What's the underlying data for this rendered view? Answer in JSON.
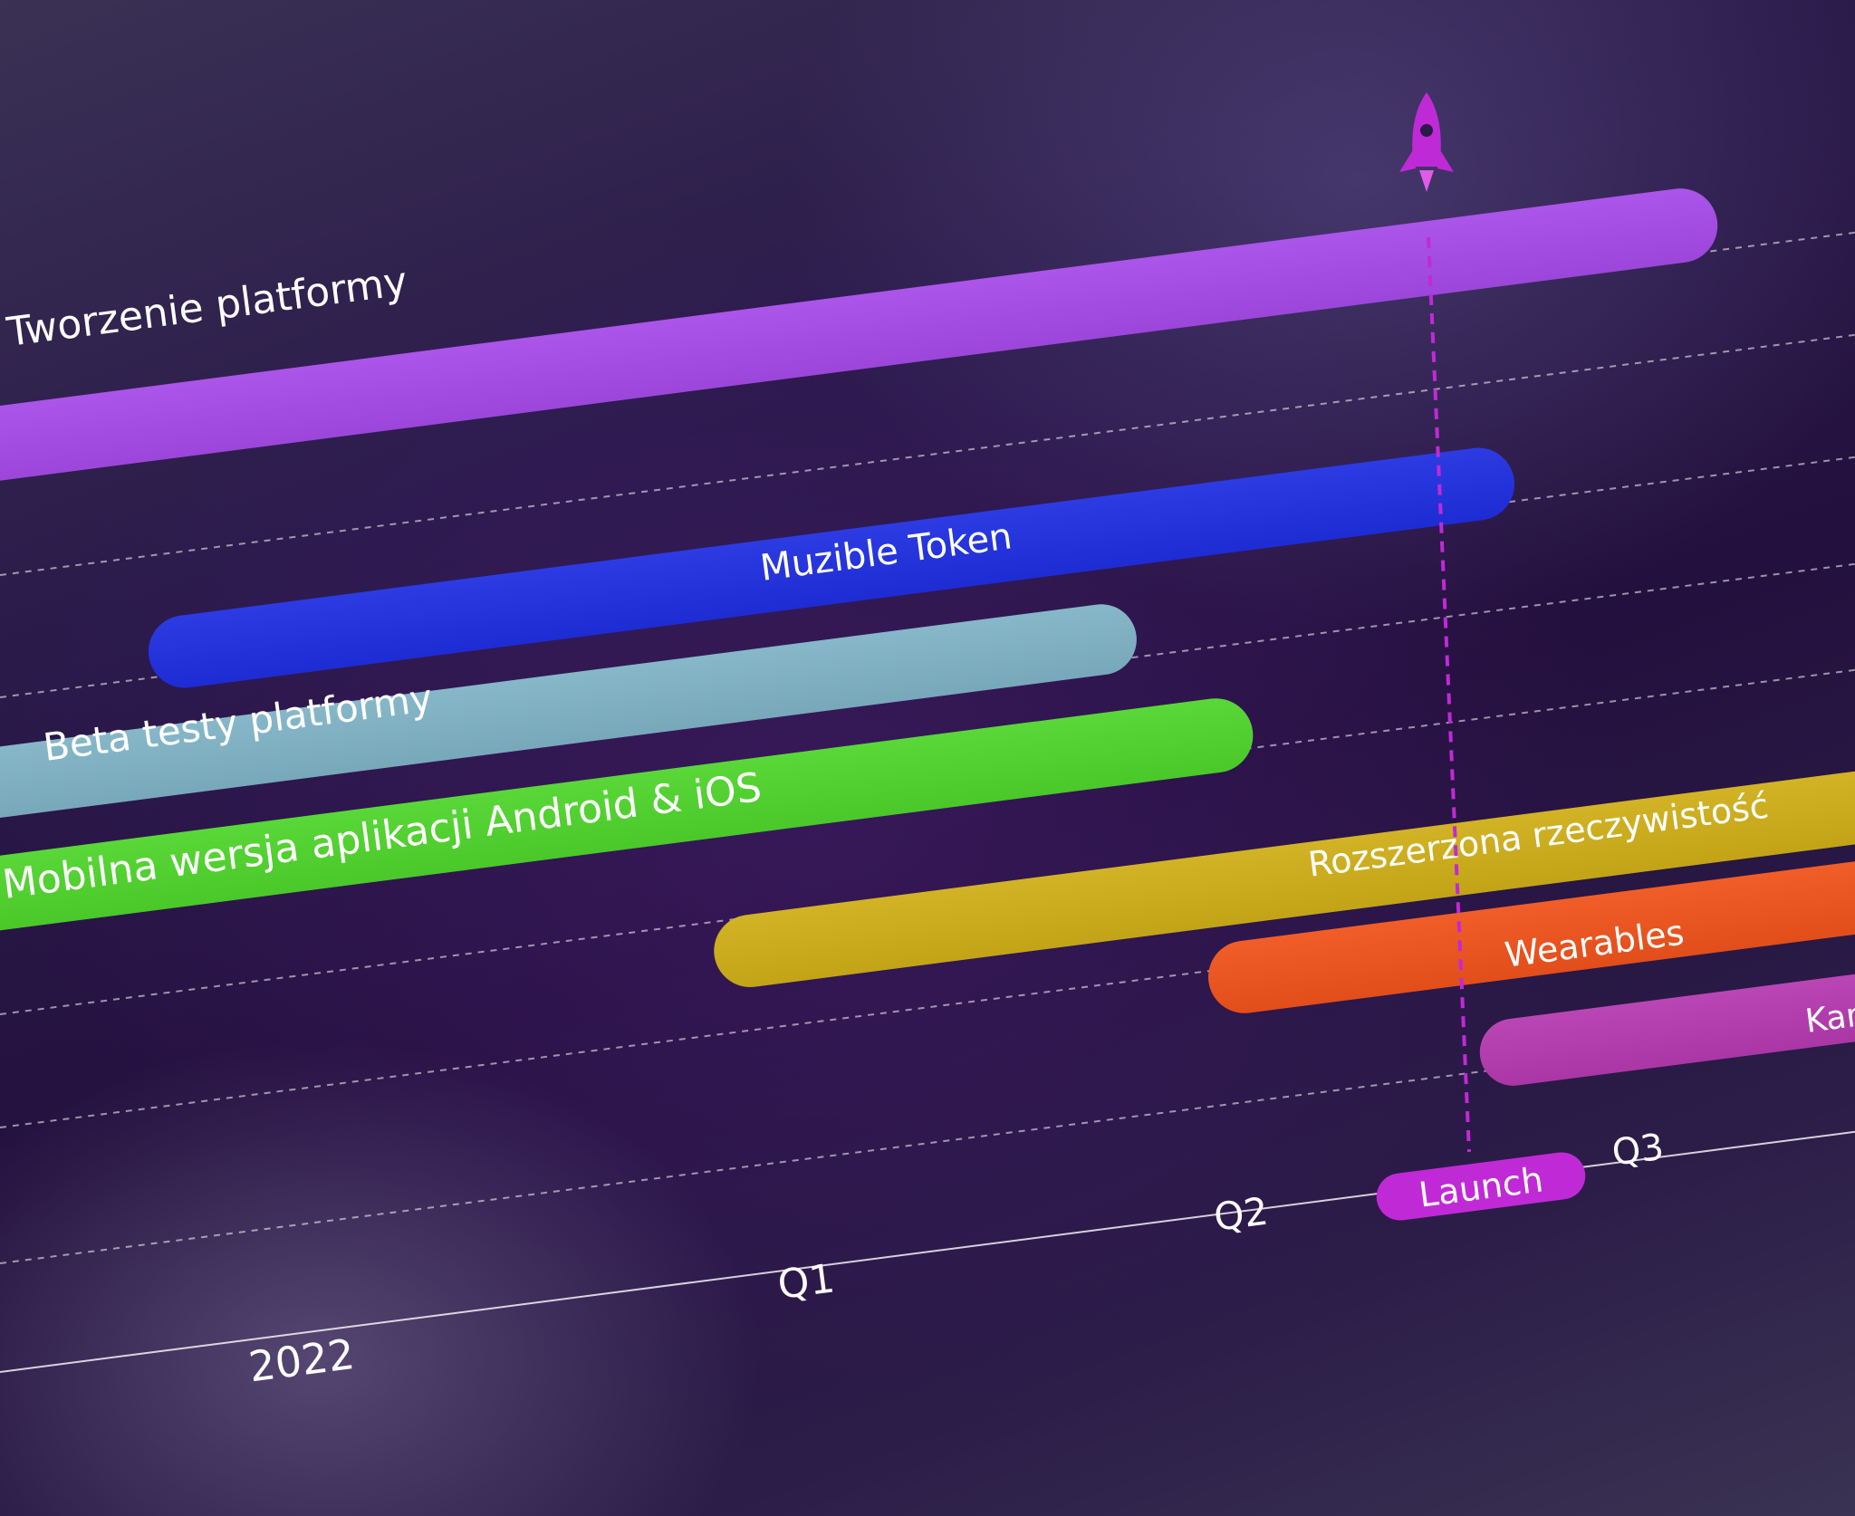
{
  "chart_data": {
    "type": "gantt",
    "title": "",
    "xlabel": "",
    "ylabel": "",
    "grid": true,
    "timeline": {
      "year_label": "2022",
      "quarters": [
        "Q1",
        "Q2",
        "Q3"
      ]
    },
    "milestone": {
      "label": "Launch",
      "icon": "rocket-icon",
      "color": "#c02ad6"
    },
    "tasks": [
      {
        "name": "Tworzenie platformy",
        "color": "#a64ae8"
      },
      {
        "name": "Muzible Token",
        "color": "#1f2fe0"
      },
      {
        "name": "Beta testy platformy",
        "color": "#7fb3c6"
      },
      {
        "name": "Mobilna wersja aplikacji Android & iOS",
        "color": "#4fd52c"
      },
      {
        "name": "Rozszerzona rzeczywistość",
        "color": "#cfae18"
      },
      {
        "name": "Wearables",
        "color": "#f0531c"
      },
      {
        "name": "Kar",
        "color": "#b53ab0"
      }
    ]
  }
}
